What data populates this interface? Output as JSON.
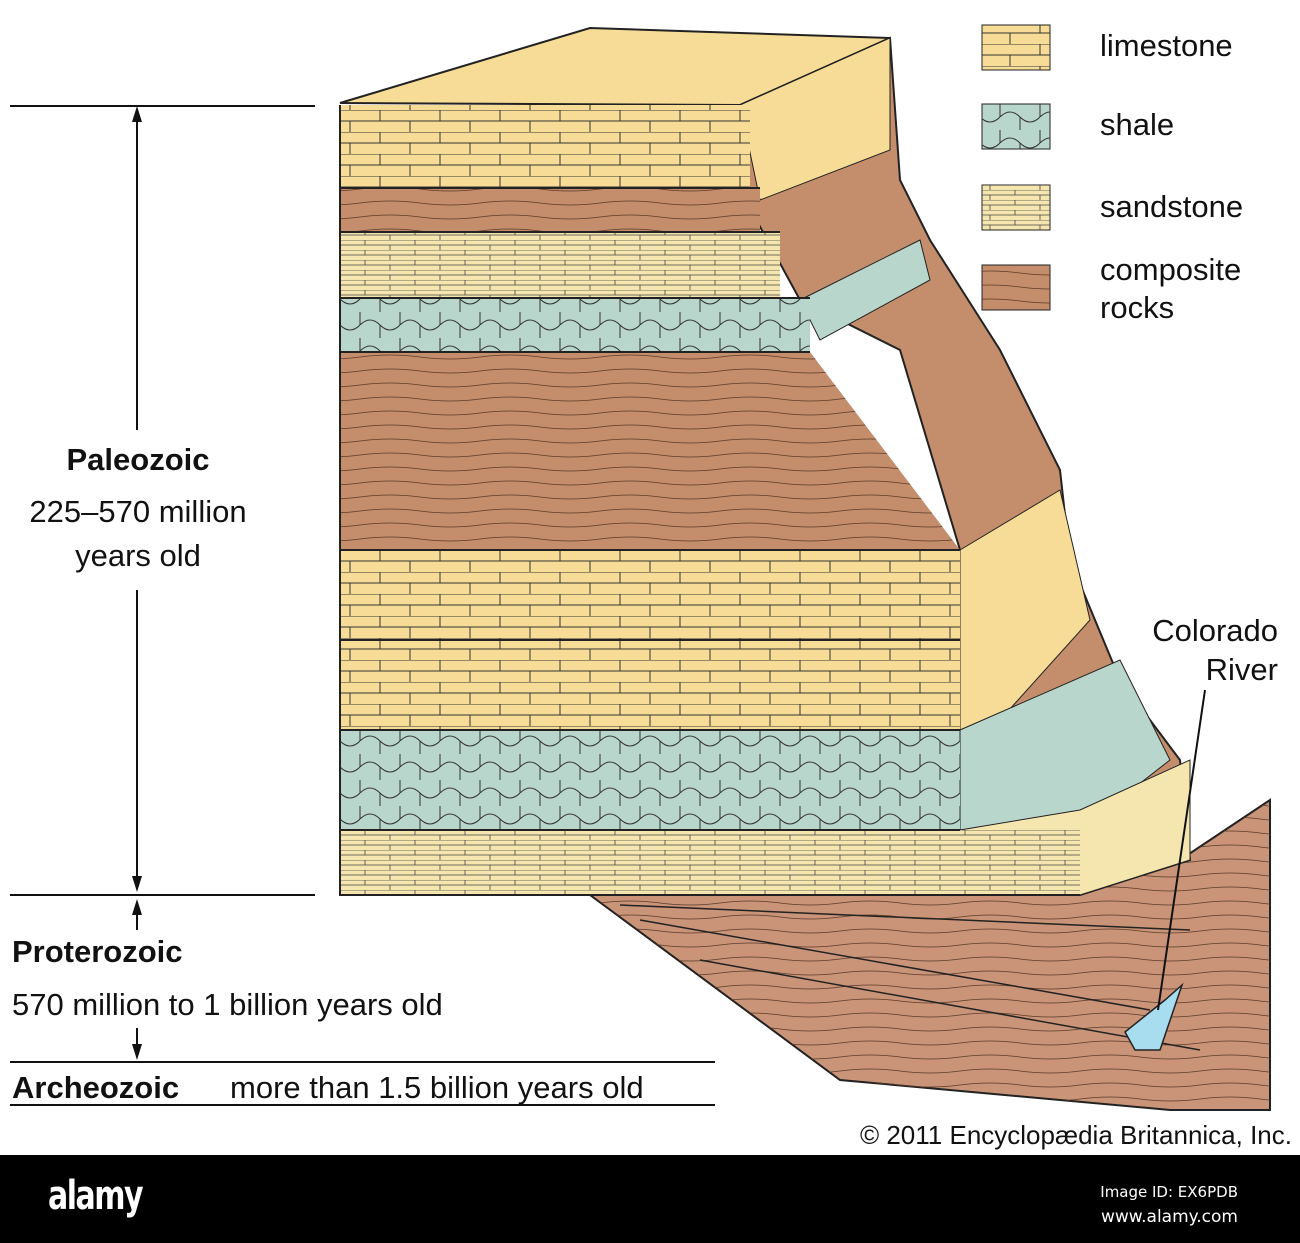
{
  "legend": {
    "items": [
      {
        "label": "limestone",
        "color": "#f6dc97"
      },
      {
        "label": "shale",
        "color": "#b9d6cc"
      },
      {
        "label": "sandstone",
        "color": "#f5e6b0"
      },
      {
        "label": "composite",
        "label2": "rocks",
        "color": "#c48d6c"
      }
    ]
  },
  "eras": {
    "paleozoic": {
      "name": "Paleozoic",
      "age_line1": "225–570 million",
      "age_line2": "years old"
    },
    "proterozoic": {
      "name": "Proterozoic",
      "age": "570 million to 1 billion years old"
    },
    "archeozoic": {
      "name": "Archeozoic",
      "age": "more than 1.5 billion years old"
    }
  },
  "river": {
    "line1": "Colorado",
    "line2": "River",
    "color": "#a8dcef"
  },
  "copyright": "© 2011 Encyclopædia  Britannica, Inc.",
  "footer": {
    "logo": "alamy",
    "image_id": "Image ID: EX6PDB",
    "site": "www.alamy.com"
  }
}
